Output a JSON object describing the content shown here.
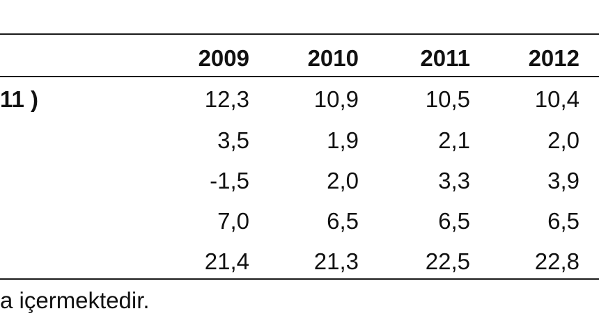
{
  "table": {
    "columns": [
      "2009",
      "2010",
      "2011",
      "2012"
    ],
    "rows": [
      {
        "label": "11 )",
        "values": [
          "12,3",
          "10,9",
          "10,5",
          "10,4"
        ]
      },
      {
        "label": "",
        "values": [
          "3,5",
          "1,9",
          "2,1",
          "2,0"
        ]
      },
      {
        "label": "",
        "values": [
          "-1,5",
          "2,0",
          "3,3",
          "3,9"
        ]
      },
      {
        "label": "",
        "values": [
          "7,0",
          "6,5",
          "6,5",
          "6,5"
        ]
      },
      {
        "label": "",
        "values": [
          "21,4",
          "21,3",
          "22,5",
          "22,8"
        ]
      }
    ]
  },
  "footnote": "a içermektedir."
}
